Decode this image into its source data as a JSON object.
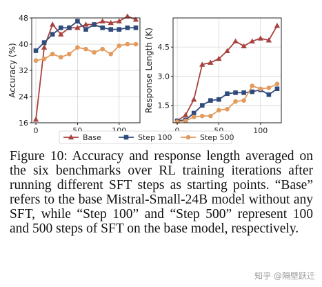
{
  "chart_data": [
    {
      "type": "line",
      "ylabel": "Accuracy (%)",
      "xlabel": "",
      "ylim": [
        16,
        48
      ],
      "xlim": [
        -5,
        125
      ],
      "yticks": [
        16,
        24,
        32,
        40,
        48
      ],
      "xticks": [
        0,
        50,
        100
      ],
      "grid": true,
      "x": [
        0,
        10,
        20,
        30,
        40,
        50,
        60,
        70,
        80,
        90,
        100,
        110,
        120
      ],
      "series": [
        {
          "name": "Base",
          "color": "#a8423f",
          "marker": "triangle",
          "values": [
            17.0,
            39.0,
            46.0,
            43.0,
            45.0,
            45.0,
            46.0,
            46.0,
            47.0,
            46.5,
            47.0,
            48.5,
            47.5
          ]
        },
        {
          "name": "Step 100",
          "color": "#2f4b7c",
          "marker": "square",
          "values": [
            38.0,
            40.5,
            43.0,
            45.0,
            45.0,
            47.0,
            44.5,
            46.0,
            45.0,
            44.5,
            44.5,
            45.0,
            45.0
          ]
        },
        {
          "name": "Step 500",
          "color": "#e39a5d",
          "marker": "circle",
          "values": [
            35.0,
            35.5,
            37.0,
            36.0,
            37.0,
            39.0,
            38.5,
            37.5,
            38.5,
            37.0,
            39.5,
            40.0,
            40.0
          ]
        }
      ]
    },
    {
      "type": "line",
      "ylabel": "Response Length (K)",
      "xlabel": "",
      "ylim": [
        0.6,
        6.0
      ],
      "xlim": [
        -5,
        125
      ],
      "yticks": [
        1.5,
        3.0,
        4.5
      ],
      "ytick_labels": [
        "1.5",
        "3.0",
        "4.5"
      ],
      "xticks": [
        0,
        50,
        100
      ],
      "grid": true,
      "x": [
        0,
        10,
        20,
        30,
        40,
        50,
        60,
        70,
        80,
        90,
        100,
        110,
        120
      ],
      "series": [
        {
          "name": "Base",
          "color": "#a8423f",
          "marker": "triangle",
          "values": [
            0.7,
            1.0,
            1.8,
            3.6,
            3.7,
            3.9,
            4.3,
            4.8,
            4.55,
            4.8,
            4.95,
            4.85,
            5.6
          ]
        },
        {
          "name": "Step 100",
          "color": "#2f4b7c",
          "marker": "square",
          "values": [
            0.7,
            0.75,
            1.1,
            1.5,
            1.75,
            1.8,
            2.1,
            2.15,
            2.15,
            2.2,
            2.3,
            2.05,
            2.35
          ]
        },
        {
          "name": "Step 500",
          "color": "#e39a5d",
          "marker": "circle",
          "values": [
            0.65,
            0.7,
            0.9,
            0.95,
            0.95,
            1.25,
            1.3,
            1.7,
            1.75,
            2.5,
            2.35,
            2.4,
            2.6
          ]
        }
      ]
    }
  ],
  "legend": {
    "placement": "bottom-center",
    "entries": [
      "Base",
      "Step 100",
      "Step 500"
    ]
  },
  "caption": "Figure 10: Accuracy and response length averaged on the six benchmarks over RL training iterations after running different SFT steps as starting points. “Base” refers to the base Mistral-Small-24B model without any SFT, while “Step 100” and “Step 500” represent 100 and 500 steps of SFT on the base model, respectively.",
  "watermark": "知乎 @隔壁跃迁"
}
